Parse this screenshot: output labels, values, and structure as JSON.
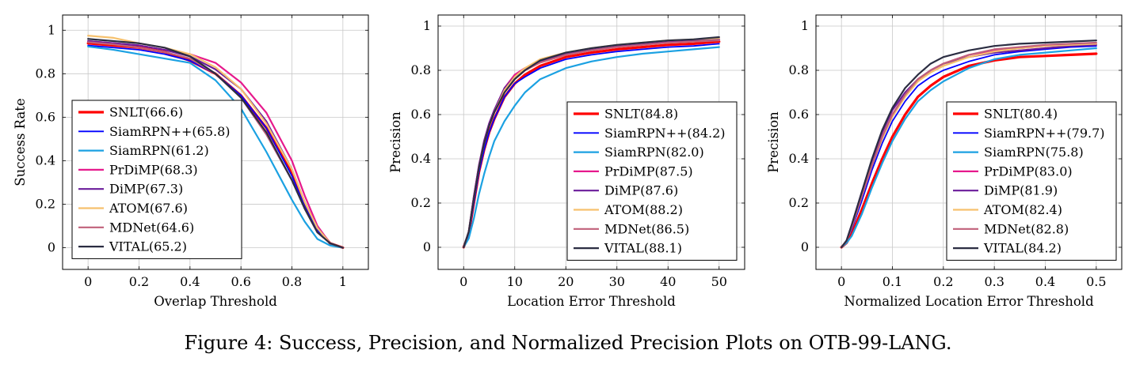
{
  "caption": "Figure 4: Success, Precision, and Normalized Precision Plots on OTB-99-LANG.",
  "chart_data": [
    {
      "type": "line",
      "xlabel": "Overlap Threshold",
      "ylabel": "Success Rate",
      "xlim": [
        -0.1,
        1.1
      ],
      "ylim": [
        -0.1,
        1.07
      ],
      "xticks": [
        0,
        0.2,
        0.4,
        0.6,
        0.8,
        1
      ],
      "xtick_labels": [
        "0",
        "0.2",
        "0.4",
        "0.6",
        "0.8",
        "1"
      ],
      "yticks": [
        0,
        0.2,
        0.4,
        0.6,
        0.8,
        1
      ],
      "ytick_labels": [
        "0",
        "0.2",
        "0.4",
        "0.6",
        "0.8",
        "1"
      ],
      "grid": true,
      "legend_position": "bottom-left",
      "x": [
        0,
        0.1,
        0.2,
        0.3,
        0.4,
        0.5,
        0.6,
        0.7,
        0.8,
        0.85,
        0.9,
        0.95,
        1.0
      ],
      "series": [
        {
          "name": "SNLT(66.6)",
          "color": "#ff0000",
          "width": 3.2,
          "values": [
            0.94,
            0.93,
            0.92,
            0.9,
            0.86,
            0.8,
            0.7,
            0.55,
            0.34,
            0.2,
            0.09,
            0.02,
            0.0
          ]
        },
        {
          "name": "SiamRPN++(65.8)",
          "color": "#0000ff",
          "width": 1.8,
          "values": [
            0.93,
            0.92,
            0.91,
            0.89,
            0.86,
            0.8,
            0.7,
            0.55,
            0.33,
            0.19,
            0.08,
            0.02,
            0.0
          ]
        },
        {
          "name": "SiamRPN(61.2)",
          "color": "#1ba1e2",
          "width": 2.2,
          "values": [
            0.925,
            0.91,
            0.89,
            0.87,
            0.85,
            0.77,
            0.64,
            0.44,
            0.22,
            0.12,
            0.04,
            0.01,
            0.0
          ]
        },
        {
          "name": "PrDiMP(68.3)",
          "color": "#e6198c",
          "width": 2.2,
          "values": [
            0.95,
            0.94,
            0.93,
            0.91,
            0.89,
            0.85,
            0.76,
            0.62,
            0.4,
            0.24,
            0.1,
            0.02,
            0.0
          ]
        },
        {
          "name": "DiMP(67.3)",
          "color": "#6a1b9a",
          "width": 2.2,
          "values": [
            0.95,
            0.94,
            0.93,
            0.91,
            0.88,
            0.82,
            0.73,
            0.58,
            0.36,
            0.21,
            0.09,
            0.02,
            0.0
          ]
        },
        {
          "name": "ATOM(67.6)",
          "color": "#f6c16e",
          "width": 2.2,
          "values": [
            0.975,
            0.965,
            0.94,
            0.92,
            0.89,
            0.83,
            0.73,
            0.57,
            0.36,
            0.21,
            0.09,
            0.02,
            0.0
          ]
        },
        {
          "name": "MDNet(64.6)",
          "color": "#c0607a",
          "width": 2.2,
          "values": [
            0.945,
            0.935,
            0.92,
            0.9,
            0.87,
            0.8,
            0.69,
            0.52,
            0.31,
            0.18,
            0.07,
            0.02,
            0.0
          ]
        },
        {
          "name": "VITAL(65.2)",
          "color": "#2b2d42",
          "width": 2.2,
          "values": [
            0.96,
            0.95,
            0.94,
            0.92,
            0.88,
            0.8,
            0.69,
            0.53,
            0.31,
            0.18,
            0.07,
            0.02,
            0.0
          ]
        }
      ]
    },
    {
      "type": "line",
      "xlabel": "Location Error Threshold",
      "ylabel": "Precision",
      "xlim": [
        -5,
        55
      ],
      "ylim": [
        -0.1,
        1.05
      ],
      "xticks": [
        0,
        10,
        20,
        30,
        40,
        50
      ],
      "xtick_labels": [
        "0",
        "10",
        "20",
        "30",
        "40",
        "50"
      ],
      "yticks": [
        0,
        0.2,
        0.4,
        0.6,
        0.8,
        1
      ],
      "ytick_labels": [
        "0",
        "0.2",
        "0.4",
        "0.6",
        "0.8",
        "1"
      ],
      "grid": true,
      "legend_position": "bottom-right",
      "x": [
        0,
        1,
        2,
        3,
        4,
        5,
        6,
        8,
        10,
        12,
        15,
        20,
        25,
        30,
        35,
        40,
        45,
        50
      ],
      "series": [
        {
          "name": "SNLT(84.8)",
          "color": "#ff0000",
          "width": 3.2,
          "values": [
            0.0,
            0.06,
            0.2,
            0.34,
            0.44,
            0.52,
            0.58,
            0.68,
            0.74,
            0.78,
            0.82,
            0.86,
            0.88,
            0.895,
            0.905,
            0.915,
            0.92,
            0.93
          ]
        },
        {
          "name": "SiamRPN++(84.2)",
          "color": "#0000ff",
          "width": 1.8,
          "values": [
            0.0,
            0.06,
            0.2,
            0.34,
            0.44,
            0.52,
            0.58,
            0.68,
            0.74,
            0.77,
            0.81,
            0.85,
            0.87,
            0.885,
            0.895,
            0.905,
            0.91,
            0.92
          ]
        },
        {
          "name": "SiamRPN(82.0)",
          "color": "#1ba1e2",
          "width": 2.2,
          "values": [
            0.0,
            0.04,
            0.13,
            0.24,
            0.33,
            0.41,
            0.48,
            0.57,
            0.64,
            0.7,
            0.76,
            0.81,
            0.84,
            0.86,
            0.875,
            0.885,
            0.895,
            0.905
          ]
        },
        {
          "name": "PrDiMP(87.5)",
          "color": "#e6198c",
          "width": 2.2,
          "values": [
            0.0,
            0.07,
            0.23,
            0.37,
            0.48,
            0.56,
            0.62,
            0.72,
            0.78,
            0.81,
            0.84,
            0.875,
            0.895,
            0.91,
            0.92,
            0.93,
            0.935,
            0.94
          ]
        },
        {
          "name": "DiMP(87.6)",
          "color": "#6a1b9a",
          "width": 2.2,
          "values": [
            0.0,
            0.07,
            0.23,
            0.37,
            0.48,
            0.56,
            0.62,
            0.72,
            0.77,
            0.8,
            0.84,
            0.875,
            0.895,
            0.91,
            0.92,
            0.93,
            0.935,
            0.94
          ]
        },
        {
          "name": "ATOM(88.2)",
          "color": "#f6c16e",
          "width": 2.2,
          "values": [
            0.0,
            0.07,
            0.22,
            0.36,
            0.47,
            0.55,
            0.61,
            0.71,
            0.77,
            0.81,
            0.85,
            0.88,
            0.9,
            0.915,
            0.925,
            0.935,
            0.94,
            0.945
          ]
        },
        {
          "name": "MDNet(86.5)",
          "color": "#c0607a",
          "width": 2.2,
          "values": [
            0.0,
            0.07,
            0.22,
            0.36,
            0.47,
            0.55,
            0.61,
            0.7,
            0.76,
            0.8,
            0.835,
            0.87,
            0.89,
            0.905,
            0.915,
            0.925,
            0.93,
            0.935
          ]
        },
        {
          "name": "VITAL(88.1)",
          "color": "#2b2d42",
          "width": 2.2,
          "values": [
            0.0,
            0.07,
            0.22,
            0.36,
            0.47,
            0.55,
            0.61,
            0.7,
            0.76,
            0.8,
            0.845,
            0.88,
            0.9,
            0.915,
            0.925,
            0.935,
            0.94,
            0.95
          ]
        }
      ]
    },
    {
      "type": "line",
      "xlabel": "Normalized Location Error Threshold",
      "ylabel": "Precision",
      "xlim": [
        -0.05,
        0.55
      ],
      "ylim": [
        -0.1,
        1.05
      ],
      "xticks": [
        0,
        0.1,
        0.2,
        0.3,
        0.4,
        0.5
      ],
      "xtick_labels": [
        "0",
        "0.1",
        "0.2",
        "0.3",
        "0.4",
        "0.5"
      ],
      "yticks": [
        0,
        0.2,
        0.4,
        0.6,
        0.8,
        1
      ],
      "ytick_labels": [
        "0",
        "0.2",
        "0.4",
        "0.6",
        "0.8",
        "1"
      ],
      "grid": true,
      "legend_position": "bottom-right",
      "x": [
        0,
        0.01,
        0.02,
        0.04,
        0.06,
        0.08,
        0.1,
        0.125,
        0.15,
        0.175,
        0.2,
        0.25,
        0.3,
        0.35,
        0.4,
        0.45,
        0.5
      ],
      "series": [
        {
          "name": "SNLT(80.4)",
          "color": "#ff0000",
          "width": 3.2,
          "values": [
            0.0,
            0.02,
            0.06,
            0.17,
            0.29,
            0.4,
            0.5,
            0.6,
            0.68,
            0.73,
            0.77,
            0.82,
            0.845,
            0.86,
            0.865,
            0.87,
            0.875
          ]
        },
        {
          "name": "SiamRPN++(79.7)",
          "color": "#0000ff",
          "width": 1.8,
          "values": [
            0.0,
            0.03,
            0.08,
            0.21,
            0.35,
            0.47,
            0.57,
            0.66,
            0.73,
            0.77,
            0.8,
            0.84,
            0.87,
            0.885,
            0.895,
            0.905,
            0.91
          ]
        },
        {
          "name": "SiamRPN(75.8)",
          "color": "#1ba1e2",
          "width": 2.2,
          "values": [
            0.0,
            0.02,
            0.05,
            0.15,
            0.27,
            0.38,
            0.48,
            0.58,
            0.66,
            0.71,
            0.75,
            0.81,
            0.85,
            0.87,
            0.88,
            0.89,
            0.9
          ]
        },
        {
          "name": "PrDiMP(83.0)",
          "color": "#e6198c",
          "width": 2.2,
          "values": [
            0.0,
            0.03,
            0.09,
            0.23,
            0.37,
            0.5,
            0.6,
            0.69,
            0.75,
            0.8,
            0.83,
            0.87,
            0.89,
            0.9,
            0.91,
            0.915,
            0.92
          ]
        },
        {
          "name": "DiMP(81.9)",
          "color": "#6a1b9a",
          "width": 2.2,
          "values": [
            0.0,
            0.03,
            0.1,
            0.25,
            0.39,
            0.52,
            0.62,
            0.7,
            0.76,
            0.8,
            0.83,
            0.86,
            0.88,
            0.89,
            0.9,
            0.91,
            0.915
          ]
        },
        {
          "name": "ATOM(82.4)",
          "color": "#f6c16e",
          "width": 2.2,
          "values": [
            0.0,
            0.03,
            0.09,
            0.23,
            0.37,
            0.49,
            0.59,
            0.68,
            0.75,
            0.79,
            0.82,
            0.86,
            0.885,
            0.9,
            0.91,
            0.915,
            0.92
          ]
        },
        {
          "name": "MDNet(82.8)",
          "color": "#c0607a",
          "width": 2.2,
          "values": [
            0.0,
            0.03,
            0.09,
            0.23,
            0.37,
            0.5,
            0.6,
            0.69,
            0.76,
            0.8,
            0.83,
            0.87,
            0.895,
            0.905,
            0.915,
            0.92,
            0.925
          ]
        },
        {
          "name": "VITAL(84.2)",
          "color": "#2b2d42",
          "width": 2.2,
          "values": [
            0.0,
            0.03,
            0.1,
            0.25,
            0.4,
            0.53,
            0.63,
            0.72,
            0.78,
            0.83,
            0.86,
            0.89,
            0.91,
            0.92,
            0.925,
            0.93,
            0.935
          ]
        }
      ]
    }
  ]
}
